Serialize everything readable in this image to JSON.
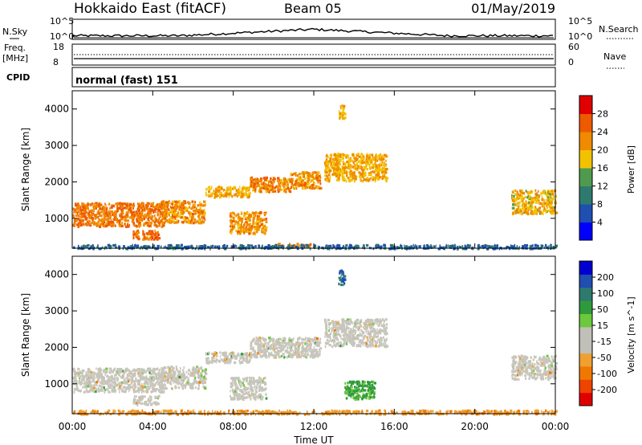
{
  "header": {
    "station": "Hokkaido East (fitACF)",
    "beam": "Beam 05",
    "date": "01/May/2019"
  },
  "info_panel": {
    "nsky_label": "N.Sky",
    "nsearch_label": "N.Search",
    "freq_label": "Freq.",
    "freq_unit": "[MHz]",
    "cpid_label": "CPID",
    "nave_label": "Nave",
    "cpid_value": "normal (fast) 151",
    "noise_ticks": [
      "10^5",
      "10^0"
    ],
    "freq_ticks": [
      "18",
      "8"
    ],
    "nave_ticks": [
      "60",
      "0"
    ]
  },
  "colors": {
    "power_scale": [
      "#0000ff",
      "#1f4fb0",
      "#2f7a6e",
      "#4f9a4f",
      "#f2c200",
      "#f08a00",
      "#ee5a00",
      "#e00000"
    ],
    "velocity_scale": [
      "#e00000",
      "#ee4400",
      "#f07800",
      "#f0a030",
      "#c0c0b8",
      "#c0c0b8",
      "#6cc83c",
      "#2f9a3c",
      "#2f7a6e",
      "#1f4fb0",
      "#0000d0"
    ]
  },
  "chart_data": [
    {
      "type": "heatmap",
      "title": "Power",
      "ylabel": "Slant Range [km]",
      "xlabel": "Time UT",
      "x_ticks": [
        "00:00",
        "04:00",
        "08:00",
        "12:00",
        "16:00",
        "20:00",
        "00:00"
      ],
      "y_ticks": [
        "1000",
        "2000",
        "3000",
        "4000"
      ],
      "ylim": [
        180,
        4500
      ],
      "colorbar": {
        "label": "Power [dB]",
        "ticks": [
          "4",
          "8",
          "12",
          "16",
          "20",
          "24",
          "28"
        ]
      },
      "regions": [
        {
          "t0": 0.0,
          "t1": 4.5,
          "r0": 800,
          "r1": 1450,
          "level": 26
        },
        {
          "t0": 3.0,
          "t1": 4.3,
          "r0": 450,
          "r1": 700,
          "level": 27
        },
        {
          "t0": 4.4,
          "t1": 6.6,
          "r0": 900,
          "r1": 1500,
          "level": 24
        },
        {
          "t0": 6.6,
          "t1": 8.8,
          "r0": 1600,
          "r1": 1900,
          "level": 22
        },
        {
          "t0": 7.8,
          "t1": 9.6,
          "r0": 600,
          "r1": 1200,
          "level": 24
        },
        {
          "t0": 8.8,
          "t1": 10.8,
          "r0": 1750,
          "r1": 2150,
          "level": 25
        },
        {
          "t0": 10.8,
          "t1": 12.3,
          "r0": 1850,
          "r1": 2300,
          "level": 24
        },
        {
          "t0": 12.5,
          "t1": 15.6,
          "r0": 2050,
          "r1": 2800,
          "level": 22
        },
        {
          "t0": 10.0,
          "t1": 11.8,
          "r0": 230,
          "r1": 330,
          "level": 26
        },
        {
          "t0": 13.2,
          "t1": 13.5,
          "r0": 3750,
          "r1": 4150,
          "level": 22
        },
        {
          "t0": 21.8,
          "t1": 24.0,
          "r0": 1150,
          "r1": 1800,
          "level": 21
        },
        {
          "t0": 0.0,
          "t1": 24.0,
          "r0": 190,
          "r1": 300,
          "level": 10
        }
      ]
    },
    {
      "type": "heatmap",
      "title": "Velocity",
      "ylabel": "Slant Range [km]",
      "xlabel": "Time UT",
      "x_ticks": [
        "00:00",
        "04:00",
        "08:00",
        "12:00",
        "16:00",
        "20:00",
        "00:00"
      ],
      "y_ticks": [
        "1000",
        "2000",
        "3000",
        "4000"
      ],
      "ylim": [
        180,
        4500
      ],
      "colorbar": {
        "label": "Velocity [m s^-1]",
        "ticks": [
          "200",
          "100",
          "50",
          "15",
          "-15",
          "-50",
          "-100",
          "-200"
        ]
      },
      "regions": [
        {
          "t0": 0.0,
          "t1": 4.5,
          "r0": 800,
          "r1": 1450,
          "level": 0
        },
        {
          "t0": 3.0,
          "t1": 4.3,
          "r0": 450,
          "r1": 700,
          "level": 0
        },
        {
          "t0": 4.4,
          "t1": 6.6,
          "r0": 900,
          "r1": 1500,
          "level": 0
        },
        {
          "t0": 6.6,
          "t1": 8.8,
          "r0": 1600,
          "r1": 1900,
          "level": 0
        },
        {
          "t0": 7.8,
          "t1": 9.6,
          "r0": 600,
          "r1": 1200,
          "level": 0
        },
        {
          "t0": 8.8,
          "t1": 12.3,
          "r0": 1750,
          "r1": 2300,
          "level": 0
        },
        {
          "t0": 12.5,
          "t1": 15.6,
          "r0": 2050,
          "r1": 2800,
          "level": 0
        },
        {
          "t0": 13.5,
          "t1": 15.0,
          "r0": 600,
          "r1": 1100,
          "level": 60
        },
        {
          "t0": 13.2,
          "t1": 13.5,
          "r0": 3750,
          "r1": 4150,
          "level": 150
        },
        {
          "t0": 21.8,
          "t1": 24.0,
          "r0": 1150,
          "r1": 1800,
          "level": 0
        },
        {
          "t0": 0.0,
          "t1": 24.0,
          "r0": 190,
          "r1": 300,
          "level": -40
        }
      ]
    }
  ]
}
